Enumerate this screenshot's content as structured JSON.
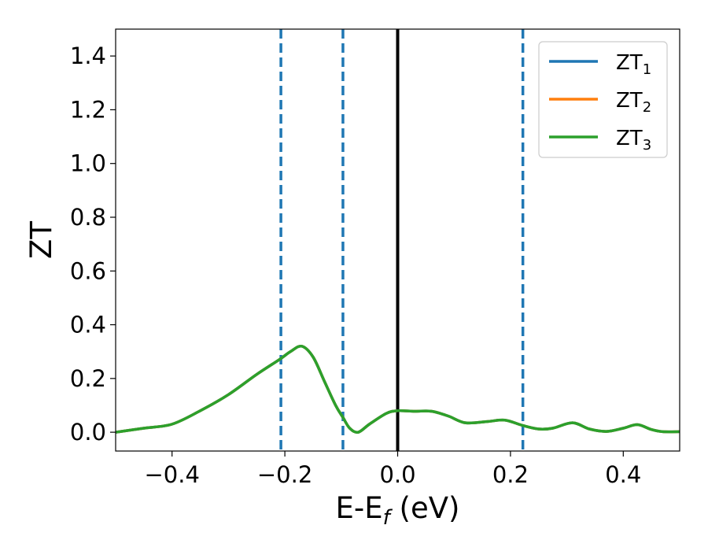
{
  "chart_data": {
    "type": "line",
    "xlabel_main": "E-E",
    "xlabel_sub": "f",
    "xlabel_unit": " (eV)",
    "ylabel": "ZT",
    "xlim": [
      -0.5,
      0.5
    ],
    "ylim": [
      -0.07,
      1.5
    ],
    "x_ticks": [
      {
        "value": -0.4,
        "label": "−0.4"
      },
      {
        "value": -0.2,
        "label": "−0.2"
      },
      {
        "value": 0.0,
        "label": "0.0"
      },
      {
        "value": 0.2,
        "label": "0.2"
      },
      {
        "value": 0.4,
        "label": "0.4"
      }
    ],
    "y_ticks": [
      {
        "value": 0.0,
        "label": "0.0"
      },
      {
        "value": 0.2,
        "label": "0.2"
      },
      {
        "value": 0.4,
        "label": "0.4"
      },
      {
        "value": 0.6,
        "label": "0.6"
      },
      {
        "value": 0.8,
        "label": "0.8"
      },
      {
        "value": 1.0,
        "label": "1.0"
      },
      {
        "value": 1.2,
        "label": "1.2"
      },
      {
        "value": 1.4,
        "label": "1.4"
      }
    ],
    "grid": false,
    "legend_position": "top-right",
    "vertical_lines": [
      {
        "x": -0.207,
        "style": "dashed",
        "color": "#1f77b4"
      },
      {
        "x": -0.097,
        "style": "dashed",
        "color": "#1f77b4"
      },
      {
        "x": 0.0,
        "style": "solid",
        "color": "#000000"
      },
      {
        "x": 0.222,
        "style": "dashed",
        "color": "#1f77b4"
      }
    ],
    "series": [
      {
        "name": "ZT",
        "sub": "1",
        "color": "#1f77b4",
        "x": [
          -0.5,
          -0.45,
          -0.4,
          -0.35,
          -0.3,
          -0.25,
          -0.21,
          -0.19,
          -0.17,
          -0.15,
          -0.13,
          -0.11,
          -0.097,
          -0.085,
          -0.07,
          -0.05,
          -0.02,
          0.0,
          0.03,
          0.06,
          0.09,
          0.12,
          0.16,
          0.19,
          0.222,
          0.25,
          0.275,
          0.31,
          0.34,
          0.37,
          0.4,
          0.425,
          0.45,
          0.47,
          0.5
        ],
        "values": [
          0.0,
          0.015,
          0.03,
          0.08,
          0.14,
          0.215,
          0.27,
          0.3,
          0.32,
          0.28,
          0.19,
          0.1,
          0.055,
          0.015,
          0.0,
          0.03,
          0.07,
          0.08,
          0.078,
          0.078,
          0.06,
          0.035,
          0.04,
          0.045,
          0.025,
          0.012,
          0.015,
          0.035,
          0.012,
          0.003,
          0.015,
          0.028,
          0.01,
          0.002,
          0.002
        ]
      },
      {
        "name": "ZT",
        "sub": "2",
        "color": "#ff7f0e",
        "x": [
          -0.5,
          -0.45,
          -0.4,
          -0.35,
          -0.3,
          -0.25,
          -0.21,
          -0.19,
          -0.17,
          -0.15,
          -0.13,
          -0.11,
          -0.097,
          -0.085,
          -0.07,
          -0.05,
          -0.02,
          0.0,
          0.03,
          0.06,
          0.09,
          0.12,
          0.16,
          0.19,
          0.222,
          0.25,
          0.275,
          0.31,
          0.34,
          0.37,
          0.4,
          0.425,
          0.45,
          0.47,
          0.5
        ],
        "values": [
          0.0,
          0.015,
          0.03,
          0.08,
          0.14,
          0.215,
          0.27,
          0.3,
          0.32,
          0.28,
          0.19,
          0.1,
          0.055,
          0.015,
          0.0,
          0.03,
          0.07,
          0.08,
          0.078,
          0.078,
          0.06,
          0.035,
          0.04,
          0.045,
          0.025,
          0.012,
          0.015,
          0.035,
          0.012,
          0.003,
          0.015,
          0.028,
          0.01,
          0.002,
          0.002
        ]
      },
      {
        "name": "ZT",
        "sub": "3",
        "color": "#2ca02c",
        "x": [
          -0.5,
          -0.45,
          -0.4,
          -0.35,
          -0.3,
          -0.25,
          -0.21,
          -0.19,
          -0.17,
          -0.15,
          -0.13,
          -0.11,
          -0.097,
          -0.085,
          -0.07,
          -0.05,
          -0.02,
          0.0,
          0.03,
          0.06,
          0.09,
          0.12,
          0.16,
          0.19,
          0.222,
          0.25,
          0.275,
          0.31,
          0.34,
          0.37,
          0.4,
          0.425,
          0.45,
          0.47,
          0.5
        ],
        "values": [
          0.0,
          0.015,
          0.03,
          0.08,
          0.14,
          0.215,
          0.27,
          0.3,
          0.32,
          0.28,
          0.19,
          0.1,
          0.055,
          0.015,
          0.0,
          0.03,
          0.07,
          0.08,
          0.078,
          0.078,
          0.06,
          0.035,
          0.04,
          0.045,
          0.025,
          0.012,
          0.015,
          0.035,
          0.012,
          0.003,
          0.015,
          0.028,
          0.01,
          0.002,
          0.002
        ]
      }
    ]
  }
}
